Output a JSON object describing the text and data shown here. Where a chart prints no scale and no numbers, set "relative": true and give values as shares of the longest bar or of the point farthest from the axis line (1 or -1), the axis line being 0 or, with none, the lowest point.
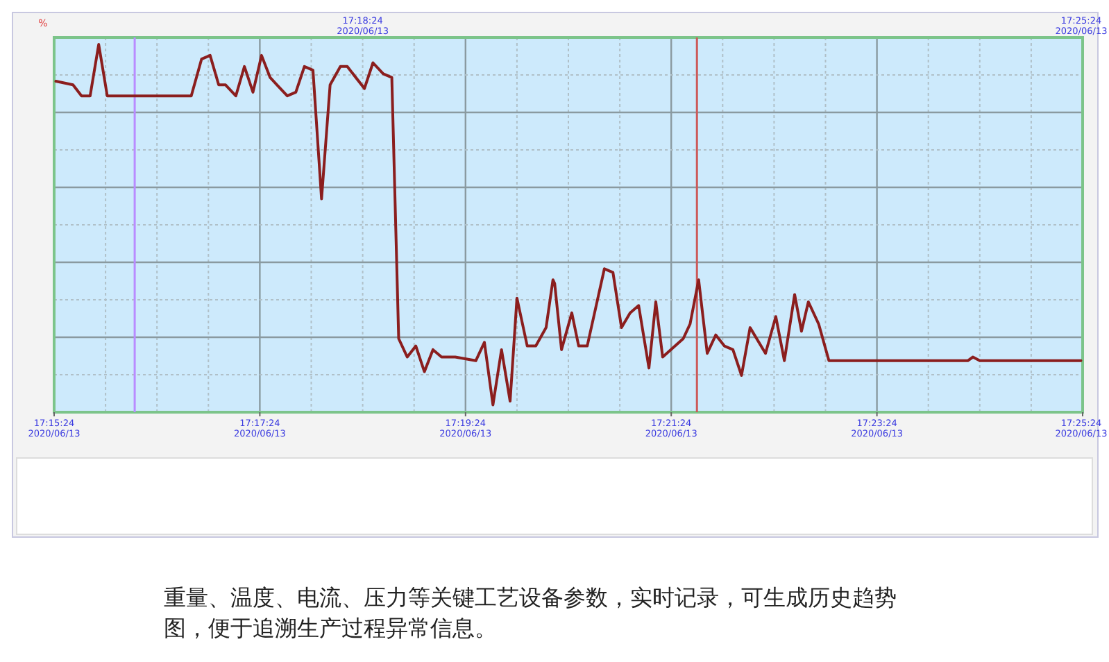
{
  "chart_data": {
    "type": "line",
    "relative": true,
    "ylabel": "%",
    "xlim": [
      "2020-06-13T17:15:24",
      "2020-06-13T17:25:24"
    ],
    "xticks": [
      {
        "value": "2020-06-13T17:15:24",
        "label": "17:15:24\n2020/06/13"
      },
      {
        "value": "2020-06-13T17:17:24",
        "label": "17:17:24\n2020/06/13"
      },
      {
        "value": "2020-06-13T17:19:24",
        "label": "17:19:24\n2020/06/13"
      },
      {
        "value": "2020-06-13T17:21:24",
        "label": "17:21:24\n2020/06/13"
      },
      {
        "value": "2020-06-13T17:23:24",
        "label": "17:23:24\n2020/06/13"
      },
      {
        "value": "2020-06-13T17:25:24",
        "label": "17:25:24\n2020/06/13"
      }
    ],
    "x2lim": [
      "2020-06-13T17:15:24",
      "2020-06-13T17:25:24"
    ],
    "x2ticks": [
      {
        "value": "2020-06-13T17:18:24",
        "label": "17:18:24\n2020/06/13"
      },
      {
        "value": "2020-06-13T17:25:24",
        "label": "17:25:24\n2020/06/13"
      }
    ],
    "grid": true,
    "marker": "none",
    "line_style": "solid",
    "ref_lines": [
      {
        "axis": "x",
        "value": "2020-06-13T17:16:11",
        "color": "#b98cff"
      },
      {
        "axis": "x",
        "value": "2020-06-13T17:21:39",
        "color": "#cc5a5a"
      }
    ],
    "series": [
      {
        "color": "#8b1e1e",
        "x": [
          "2020-06-13T17:15:25",
          "2020-06-13T17:15:35",
          "2020-06-13T17:15:40",
          "2020-06-13T17:15:45",
          "2020-06-13T17:15:50",
          "2020-06-13T17:15:55",
          "2020-06-13T17:16:26",
          "2020-06-13T17:16:30",
          "2020-06-13T17:16:39",
          "2020-06-13T17:16:44",
          "2020-06-13T17:16:50",
          "2020-06-13T17:16:55",
          "2020-06-13T17:17:00",
          "2020-06-13T17:17:04",
          "2020-06-13T17:17:10",
          "2020-06-13T17:17:15",
          "2020-06-13T17:17:20",
          "2020-06-13T17:17:25",
          "2020-06-13T17:17:30",
          "2020-06-13T17:17:34",
          "2020-06-13T17:17:40",
          "2020-06-13T17:17:45",
          "2020-06-13T17:17:50",
          "2020-06-13T17:17:55",
          "2020-06-13T17:18:00",
          "2020-06-13T17:18:05",
          "2020-06-13T17:18:11",
          "2020-06-13T17:18:15",
          "2020-06-13T17:18:25",
          "2020-06-13T17:18:30",
          "2020-06-13T17:18:36",
          "2020-06-13T17:18:41",
          "2020-06-13T17:18:45",
          "2020-06-13T17:18:50",
          "2020-06-13T17:18:55",
          "2020-06-13T17:19:00",
          "2020-06-13T17:19:05",
          "2020-06-13T17:19:10",
          "2020-06-13T17:19:18",
          "2020-06-13T17:19:30",
          "2020-06-13T17:19:35",
          "2020-06-13T17:19:40",
          "2020-06-13T17:19:45",
          "2020-06-13T17:19:50",
          "2020-06-13T17:19:54",
          "2020-06-13T17:20:00",
          "2020-06-13T17:20:05",
          "2020-06-13T17:20:11",
          "2020-06-13T17:20:15",
          "2020-06-13T17:20:16",
          "2020-06-13T17:20:20",
          "2020-06-13T17:20:26",
          "2020-06-13T17:20:30",
          "2020-06-13T17:20:35",
          "2020-06-13T17:20:45",
          "2020-06-13T17:20:50",
          "2020-06-13T17:20:55",
          "2020-06-13T17:21:00",
          "2020-06-13T17:21:05",
          "2020-06-13T17:21:11",
          "2020-06-13T17:21:15",
          "2020-06-13T17:21:19",
          "2020-06-13T17:21:31",
          "2020-06-13T17:21:35",
          "2020-06-13T17:21:40",
          "2020-06-13T17:21:45",
          "2020-06-13T17:21:50",
          "2020-06-13T17:21:55",
          "2020-06-13T17:22:00",
          "2020-06-13T17:22:05",
          "2020-06-13T17:22:10",
          "2020-06-13T17:22:19",
          "2020-06-13T17:22:25",
          "2020-06-13T17:22:30",
          "2020-06-13T17:22:36",
          "2020-06-13T17:22:40",
          "2020-06-13T17:22:44",
          "2020-06-13T17:22:50",
          "2020-06-13T17:22:56",
          "2020-06-13T17:23:00",
          "2020-06-13T17:24:17",
          "2020-06-13T17:24:20",
          "2020-06-13T17:24:24",
          "2020-06-13T17:25:23"
        ],
        "values": [
          0.9,
          0.89,
          0.86,
          0.86,
          1.0,
          0.86,
          0.86,
          0.86,
          0.86,
          0.86,
          0.96,
          0.97,
          0.89,
          0.89,
          0.86,
          0.94,
          0.87,
          0.97,
          0.91,
          0.89,
          0.86,
          0.87,
          0.94,
          0.93,
          0.58,
          0.89,
          0.94,
          0.94,
          0.88,
          0.95,
          0.92,
          0.91,
          0.2,
          0.15,
          0.18,
          0.11,
          0.17,
          0.15,
          0.15,
          0.14,
          0.19,
          0.02,
          0.17,
          0.03,
          0.31,
          0.18,
          0.18,
          0.23,
          0.36,
          0.35,
          0.17,
          0.27,
          0.18,
          0.18,
          0.39,
          0.38,
          0.23,
          0.27,
          0.29,
          0.12,
          0.3,
          0.15,
          0.2,
          0.24,
          0.36,
          0.16,
          0.21,
          0.18,
          0.17,
          0.1,
          0.23,
          0.16,
          0.26,
          0.14,
          0.32,
          0.22,
          0.3,
          0.24,
          0.14,
          0.14,
          0.14,
          0.15,
          0.14,
          0.14
        ]
      }
    ],
    "annotations": [
      "重量、温度、电流、压力等关键工艺设备参数，实时记录，可生成历史趋势图，便于追溯生产过程异常信息。"
    ]
  }
}
